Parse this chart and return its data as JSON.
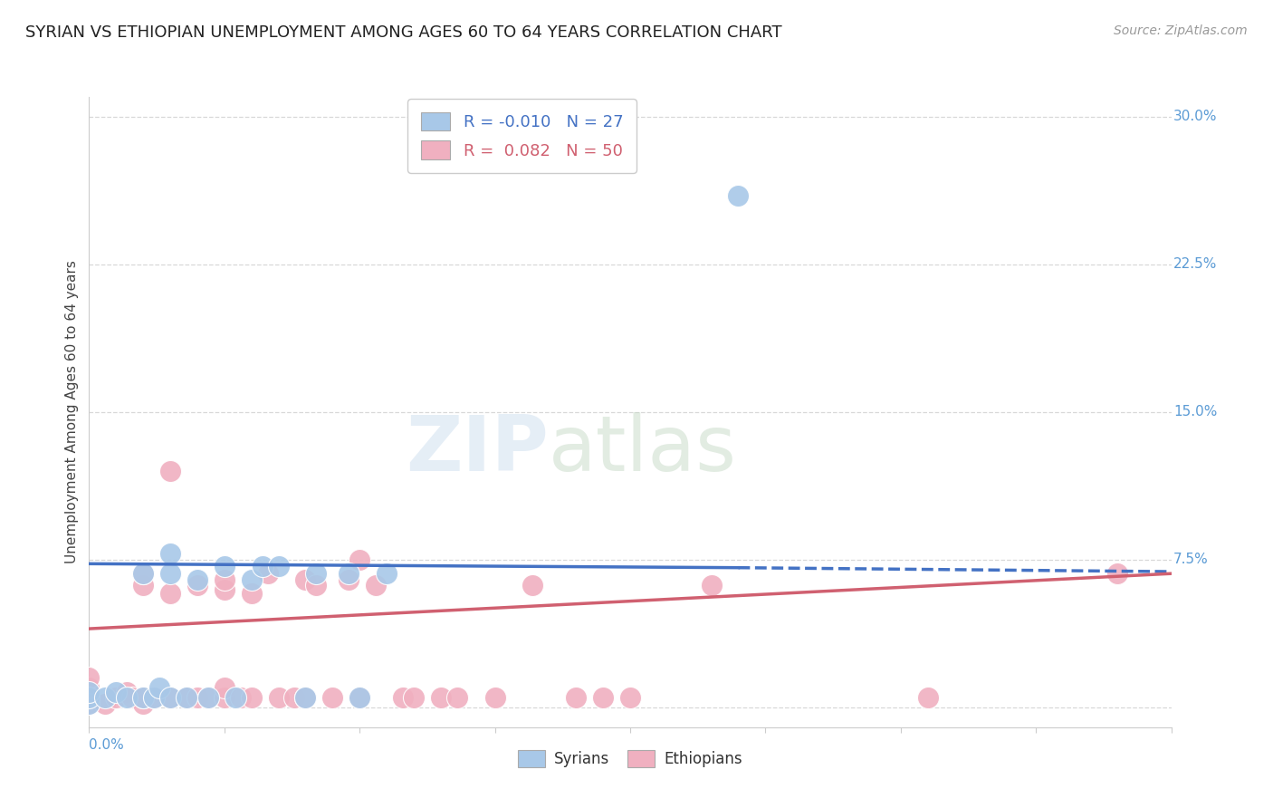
{
  "title": "SYRIAN VS ETHIOPIAN UNEMPLOYMENT AMONG AGES 60 TO 64 YEARS CORRELATION CHART",
  "source": "Source: ZipAtlas.com",
  "ylabel": "Unemployment Among Ages 60 to 64 years",
  "xlim": [
    0.0,
    0.2
  ],
  "ylim": [
    -0.01,
    0.31
  ],
  "yticks": [
    0.0,
    0.075,
    0.15,
    0.225,
    0.3
  ],
  "ytick_labels": [
    "",
    "7.5%",
    "15.0%",
    "22.5%",
    "30.0%"
  ],
  "background_color": "#ffffff",
  "grid_color": "#d8d8d8",
  "watermark_zip": "ZIP",
  "watermark_atlas": "atlas",
  "syrian_color": "#a8c8e8",
  "ethiopian_color": "#f0b0c0",
  "syrian_line_color": "#4472c4",
  "ethiopian_line_color": "#d06070",
  "syrian_R": -0.01,
  "syrian_N": 27,
  "ethiopian_R": 0.082,
  "ethiopian_N": 50,
  "syrian_line_x_solid_end": 0.12,
  "syrian_line_x_end": 0.2,
  "syrian_line_y_start": 0.073,
  "syrian_line_y_solid_end": 0.071,
  "syrian_line_y_end": 0.069,
  "ethiopian_line_y_start": 0.04,
  "ethiopian_line_y_end": 0.068,
  "syrians_x": [
    0.0,
    0.0,
    0.0,
    0.003,
    0.005,
    0.007,
    0.01,
    0.01,
    0.012,
    0.013,
    0.015,
    0.015,
    0.015,
    0.018,
    0.02,
    0.022,
    0.025,
    0.027,
    0.03,
    0.032,
    0.035,
    0.04,
    0.042,
    0.048,
    0.05,
    0.055,
    0.12
  ],
  "syrians_y": [
    0.002,
    0.005,
    0.008,
    0.005,
    0.008,
    0.005,
    0.005,
    0.068,
    0.005,
    0.01,
    0.005,
    0.068,
    0.078,
    0.005,
    0.065,
    0.005,
    0.072,
    0.005,
    0.065,
    0.072,
    0.072,
    0.005,
    0.068,
    0.068,
    0.005,
    0.068,
    0.26
  ],
  "ethiopians_x": [
    0.0,
    0.0,
    0.0,
    0.0,
    0.003,
    0.005,
    0.007,
    0.008,
    0.01,
    0.01,
    0.01,
    0.01,
    0.012,
    0.015,
    0.015,
    0.015,
    0.018,
    0.02,
    0.02,
    0.022,
    0.025,
    0.025,
    0.025,
    0.025,
    0.028,
    0.03,
    0.03,
    0.033,
    0.035,
    0.038,
    0.04,
    0.04,
    0.042,
    0.045,
    0.048,
    0.05,
    0.05,
    0.053,
    0.058,
    0.06,
    0.065,
    0.068,
    0.075,
    0.082,
    0.09,
    0.095,
    0.1,
    0.115,
    0.155,
    0.19
  ],
  "ethiopians_y": [
    0.002,
    0.005,
    0.01,
    0.015,
    0.002,
    0.005,
    0.008,
    0.005,
    0.002,
    0.005,
    0.062,
    0.068,
    0.005,
    0.005,
    0.058,
    0.12,
    0.005,
    0.005,
    0.062,
    0.005,
    0.005,
    0.01,
    0.06,
    0.065,
    0.005,
    0.005,
    0.058,
    0.068,
    0.005,
    0.005,
    0.005,
    0.065,
    0.062,
    0.005,
    0.065,
    0.005,
    0.075,
    0.062,
    0.005,
    0.005,
    0.005,
    0.005,
    0.005,
    0.062,
    0.005,
    0.005,
    0.005,
    0.062,
    0.005,
    0.068
  ]
}
